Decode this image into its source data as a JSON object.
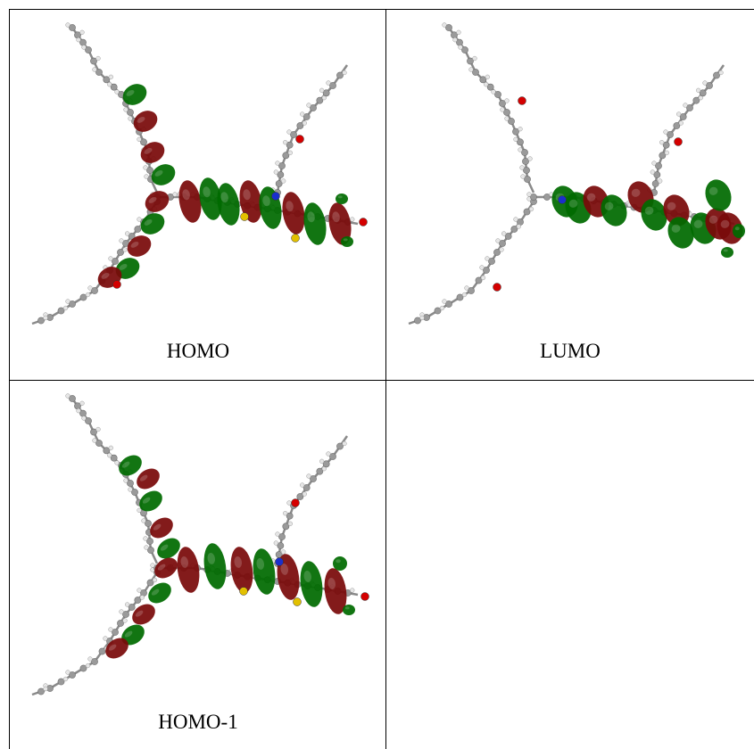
{
  "panels": [
    {
      "id": "homo",
      "label": "HOMO"
    },
    {
      "id": "lumo",
      "label": "LUMO"
    },
    {
      "id": "homo1",
      "label": "HOMO-1"
    },
    {
      "id": "empty",
      "label": ""
    }
  ],
  "colors": {
    "lobe_positive": "#006b00",
    "lobe_negative": "#7a0a0a",
    "carbon": "#9a9a9a",
    "hydrogen": "#e6e6e6",
    "oxygen": "#d40000",
    "nitrogen": "#1a2fcc",
    "sulfur": "#e2c000",
    "border": "#000000"
  }
}
